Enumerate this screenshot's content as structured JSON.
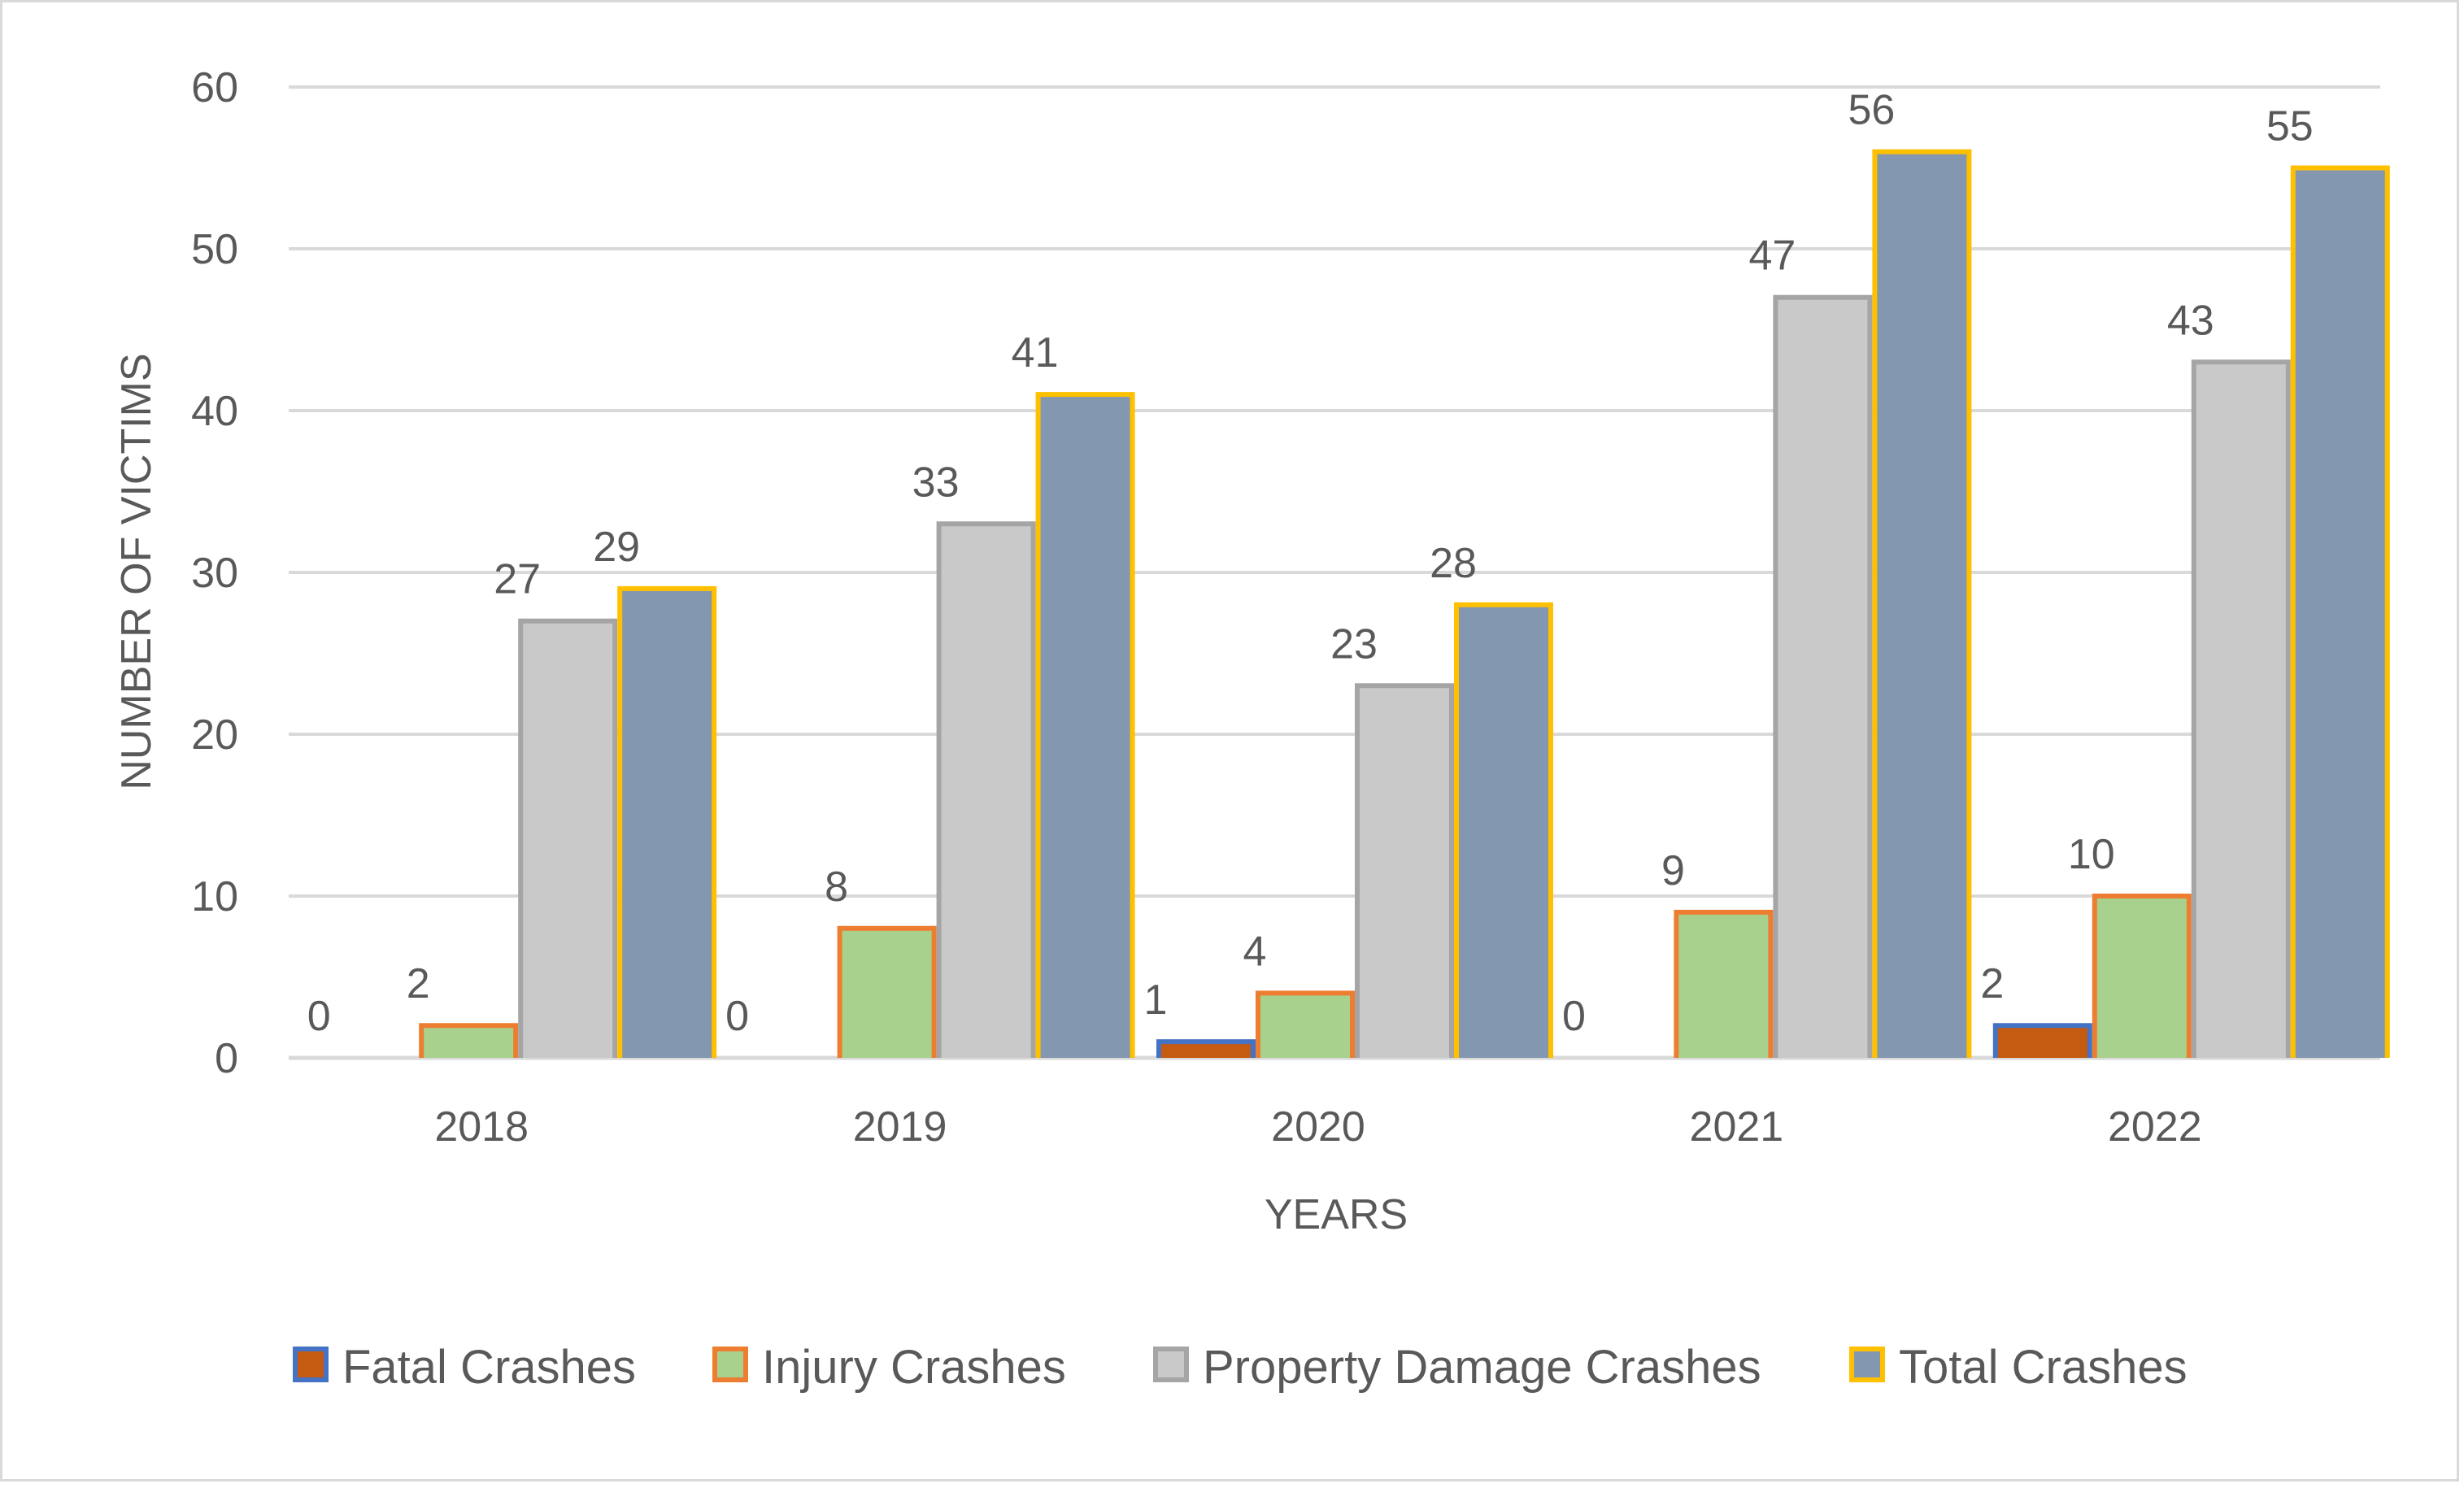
{
  "chart_data": {
    "type": "bar",
    "title": "",
    "xlabel": "YEARS",
    "ylabel": "NUMBER OF VICTIMS",
    "ylim": [
      0,
      60
    ],
    "yticks": [
      0,
      10,
      20,
      30,
      40,
      50,
      60
    ],
    "grid": true,
    "legend_position": "bottom",
    "categories": [
      "2018",
      "2019",
      "2020",
      "2021",
      "2022"
    ],
    "series": [
      {
        "name": "Fatal Crashes",
        "values": [
          0,
          0,
          1,
          0,
          2
        ],
        "fill": "#c55a11",
        "stroke": "#4472c4"
      },
      {
        "name": "Injury Crashes",
        "values": [
          2,
          8,
          4,
          9,
          10
        ],
        "fill": "#a9d18e",
        "stroke": "#ed7d31"
      },
      {
        "name": "Property Damage Crashes",
        "values": [
          27,
          33,
          23,
          47,
          43
        ],
        "fill": "#c9c9c9",
        "stroke": "#a5a5a5"
      },
      {
        "name": "Total Crashes",
        "values": [
          29,
          41,
          28,
          56,
          55
        ],
        "fill": "#8497b0",
        "stroke": "#ffc000"
      }
    ]
  }
}
